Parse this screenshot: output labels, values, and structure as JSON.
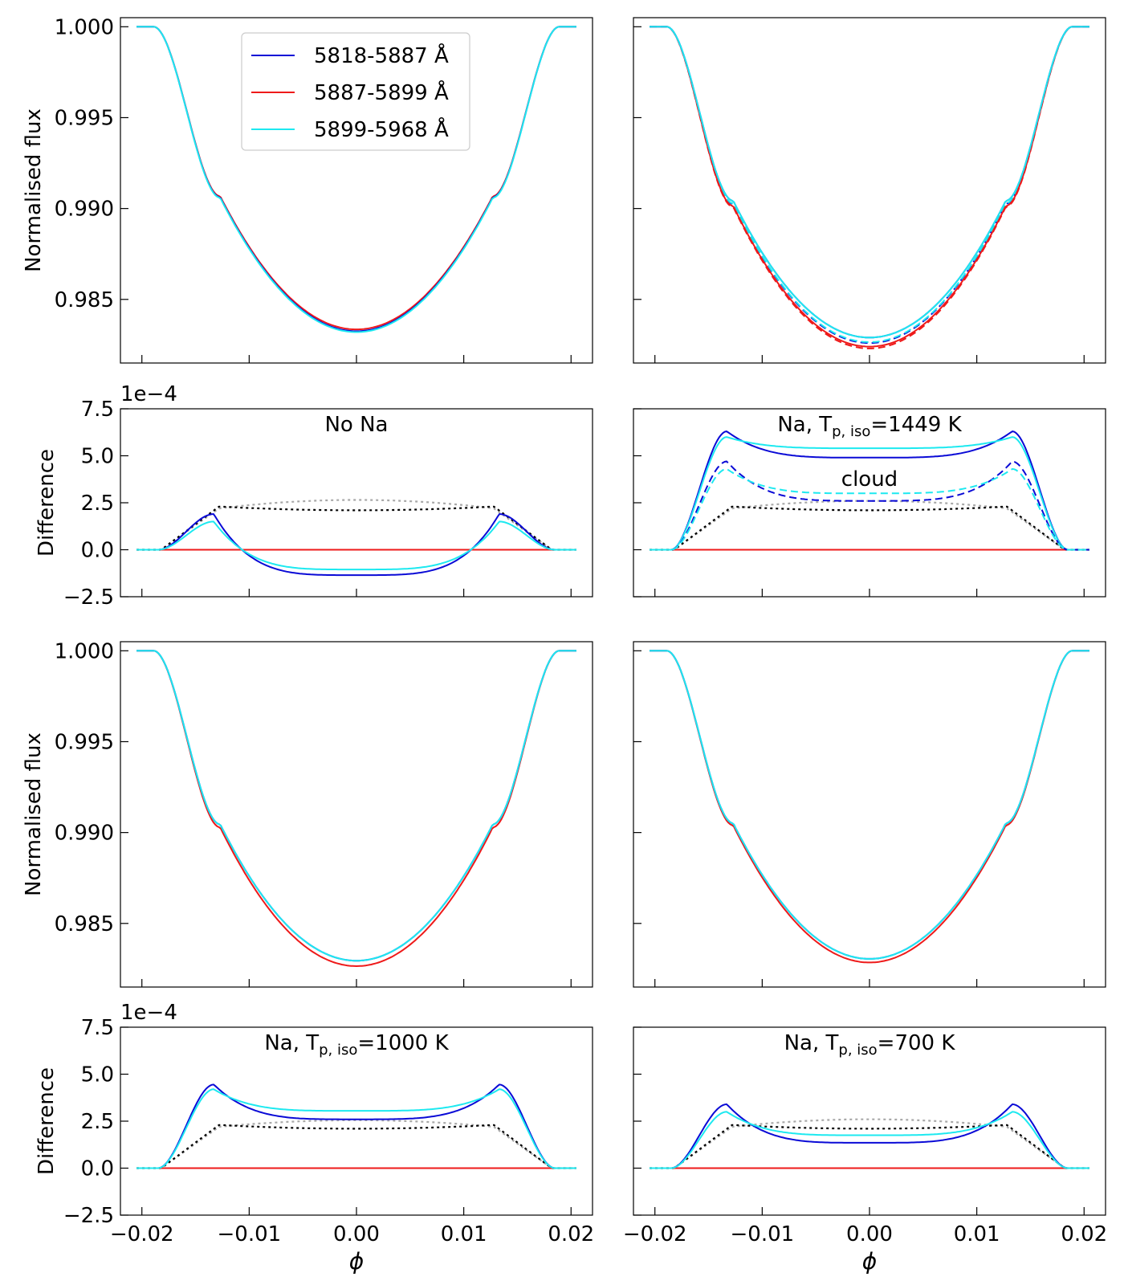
{
  "figure": {
    "legend": {
      "entries": [
        {
          "label": "5818-5887 Å",
          "color": "#0a0ad6"
        },
        {
          "label": "5887-5899 Å",
          "color": "#ee1a1a"
        },
        {
          "label": "5899-5968 Å",
          "color": "#1de9f0"
        }
      ],
      "placement": "top-center (top-left panel)"
    },
    "xlabel": "ϕ",
    "x_tick_labels": [
      "−0.02",
      "−0.01",
      "0.00",
      "0.01",
      "0.02"
    ],
    "flux_ylabel": "Normalised flux",
    "flux_tick_labels": [
      "1.000",
      "0.995",
      "0.990",
      "0.985"
    ],
    "diff_ylabel": "Difference",
    "diff_tick_labels": [
      "7.5",
      "5.0",
      "2.5",
      "0.0",
      "−2.5"
    ],
    "diff_multiplier": "1e−4"
  },
  "chart_data": [
    {
      "type": "line",
      "panel": "flux",
      "position": "row 1 left",
      "xlim": [
        -0.022,
        0.022
      ],
      "ylim": [
        0.9815,
        1.0005
      ],
      "y_ticks": [
        1.0,
        0.995,
        0.99,
        0.985
      ],
      "transit_depth": {
        "5818-5887 Å": 0.01675,
        "5887-5899 Å": 0.01665,
        "5899-5968 Å": 0.0168
      },
      "dashed_depth": null
    },
    {
      "type": "line",
      "panel": "flux",
      "position": "row 1 right",
      "xlim": [
        -0.022,
        0.022
      ],
      "ylim": [
        0.9815,
        1.0005
      ],
      "y_ticks": [
        1.0,
        0.995,
        0.99,
        0.985
      ],
      "transit_depth": {
        "5818-5887 Å": 0.0171,
        "5887-5899 Å": 0.0176,
        "5899-5968 Å": 0.0171
      },
      "dashed_depth": {
        "5818-5887 Å": 0.0174,
        "5887-5899 Å": 0.0177,
        "5899-5968 Å": 0.01735
      }
    },
    {
      "type": "line",
      "panel": "difference",
      "position": "row 2 left",
      "title": "No Na",
      "xlim": [
        -0.022,
        0.022
      ],
      "ylim": [
        -2.5,
        7.5
      ],
      "y_multiplier": "1e-4",
      "series": [
        {
          "name": "5818-5887 Å",
          "peak": 1.9,
          "center": -1.35
        },
        {
          "name": "5887-5899 Å",
          "constant": 0.0
        },
        {
          "name": "5899-5968 Å",
          "peak": 1.5,
          "center": -1.05
        }
      ],
      "dotted_reference": {
        "black": [
          2.3,
          2.1
        ],
        "grey": [
          2.2,
          2.65
        ]
      }
    },
    {
      "type": "line",
      "panel": "difference",
      "position": "row 2 right",
      "title": "Na, T_p,iso=1449 K",
      "annotation": "cloud",
      "xlim": [
        -0.022,
        0.022
      ],
      "ylim": [
        -2.5,
        7.5
      ],
      "y_multiplier": "1e-4",
      "series": [
        {
          "name": "5818-5887 Å",
          "peak": 6.3,
          "center": 4.9
        },
        {
          "name": "5887-5899 Å",
          "constant": 0.0
        },
        {
          "name": "5899-5968 Å",
          "peak": 6.0,
          "center": 5.4
        },
        {
          "name": "5818-5887 Å (cloud)",
          "peak": 4.7,
          "center": 2.6
        },
        {
          "name": "5899-5968 Å (cloud)",
          "peak": 4.3,
          "center": 3.0
        }
      ],
      "dotted_reference": {
        "black": [
          2.3,
          2.1
        ],
        "grey": [
          2.2,
          2.6
        ]
      }
    },
    {
      "type": "line",
      "panel": "flux",
      "position": "row 3 left",
      "xlim": [
        -0.022,
        0.022
      ],
      "ylim": [
        0.9815,
        1.0005
      ],
      "y_ticks": [
        1.0,
        0.995,
        0.99,
        0.985
      ],
      "transit_depth": {
        "5818-5887 Å": 0.01705,
        "5887-5899 Å": 0.01735,
        "5899-5968 Å": 0.01705
      },
      "dashed_depth": null
    },
    {
      "type": "line",
      "panel": "flux",
      "position": "row 3 right",
      "xlim": [
        -0.022,
        0.022
      ],
      "ylim": [
        0.9815,
        1.0005
      ],
      "y_ticks": [
        1.0,
        0.995,
        0.99,
        0.985
      ],
      "transit_depth": {
        "5818-5887 Å": 0.01695,
        "5887-5899 Å": 0.01715,
        "5899-5968 Å": 0.01695
      },
      "dashed_depth": null
    },
    {
      "type": "line",
      "panel": "difference",
      "position": "row 4 left",
      "title": "Na, T_p,iso=1000 K",
      "xlim": [
        -0.022,
        0.022
      ],
      "ylim": [
        -2.5,
        7.5
      ],
      "y_multiplier": "1e-4",
      "series": [
        {
          "name": "5818-5887 Å",
          "peak": 4.45,
          "center": 2.6
        },
        {
          "name": "5887-5899 Å",
          "constant": 0.0
        },
        {
          "name": "5899-5968 Å",
          "peak": 4.2,
          "center": 3.05
        }
      ],
      "dotted_reference": {
        "black": [
          2.3,
          2.1
        ],
        "grey": [
          2.2,
          2.55
        ]
      }
    },
    {
      "type": "line",
      "panel": "difference",
      "position": "row 4 right",
      "title": "Na, T_p,iso=700 K",
      "xlim": [
        -0.022,
        0.022
      ],
      "ylim": [
        -2.5,
        7.5
      ],
      "y_multiplier": "1e-4",
      "series": [
        {
          "name": "5818-5887 Å",
          "peak": 3.4,
          "center": 1.35
        },
        {
          "name": "5887-5899 Å",
          "constant": 0.0
        },
        {
          "name": "5899-5968 Å",
          "peak": 3.0,
          "center": 1.75
        }
      ],
      "dotted_reference": {
        "black": [
          2.3,
          2.1
        ],
        "grey": [
          2.2,
          2.6
        ]
      }
    }
  ]
}
